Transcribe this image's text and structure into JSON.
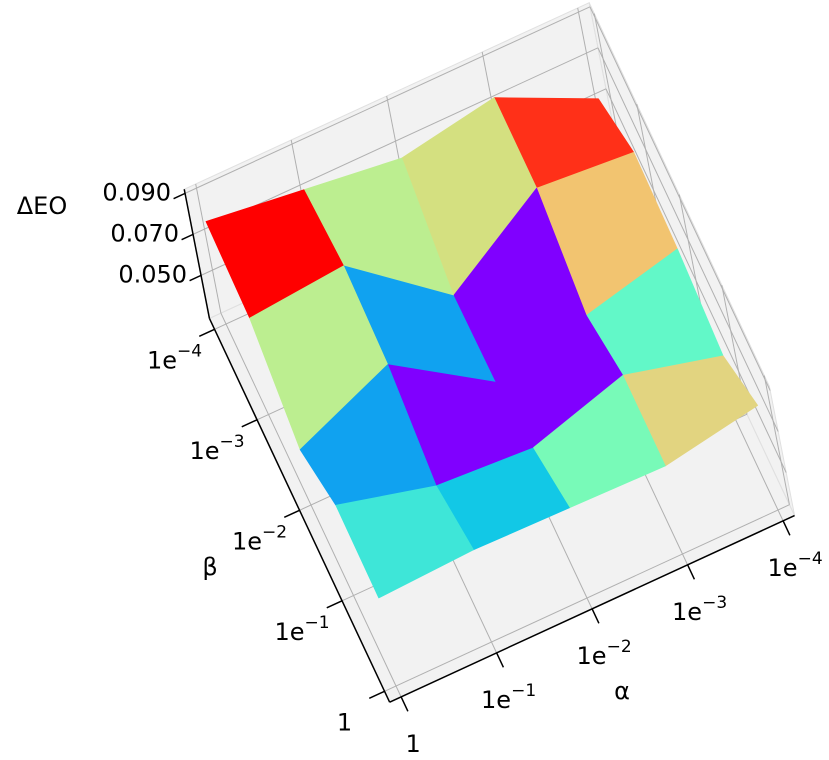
{
  "chart_data": {
    "type": "surface",
    "xlabel": "α",
    "ylabel": "β",
    "zlabel": "ΔEO",
    "x": [
      1,
      0.1,
      0.01,
      0.001,
      0.0001
    ],
    "y": [
      1,
      0.1,
      0.01,
      0.001,
      0.0001
    ],
    "z": [
      [
        0.072,
        0.074,
        0.073,
        0.072,
        0.08
      ],
      [
        0.073,
        0.061,
        0.058,
        0.072,
        0.06
      ],
      [
        0.056,
        0.076,
        0.046,
        0.057,
        0.068
      ],
      [
        0.076,
        0.08,
        0.044,
        0.075,
        0.071
      ],
      [
        0.079,
        0.073,
        0.067,
        0.075,
        0.053
      ]
    ],
    "face_colors": [
      [
        "#3ee6d8",
        "#12c8e6",
        "#78fab8",
        "#e2d480"
      ],
      [
        "#10a2f0",
        "#8000ff",
        "#8000ff",
        "#62f8c8"
      ],
      [
        "#bcee90",
        "#10a2f0",
        "#8000ff",
        "#f2c470"
      ],
      [
        "#ff0000",
        "#bcee90",
        "#d4e080",
        "#ff3018"
      ]
    ],
    "xscale": "log",
    "yscale": "log",
    "xlim": [
      1,
      0.0001
    ],
    "ylim": [
      1,
      0.0001
    ],
    "zlim": [
      0.029,
      0.092
    ],
    "xticks": [
      1,
      {
        "value": 0.1,
        "label": "1e−1"
      },
      {
        "value": 0.01,
        "label": "1e−2"
      },
      {
        "value": 0.001,
        "label": "1e−3"
      },
      {
        "value": 0.0001,
        "label": "1e−4"
      }
    ],
    "yticks": [
      1,
      {
        "value": 0.1,
        "label": "1e−1"
      },
      {
        "value": 0.01,
        "label": "1e−2"
      },
      {
        "value": 0.001,
        "label": "1e−3"
      },
      {
        "value": 0.0001,
        "label": "1e−4"
      }
    ],
    "zticks": [
      {
        "value": 0.05,
        "label": "0.050"
      },
      {
        "value": 0.07,
        "label": "0.070"
      },
      {
        "value": 0.09,
        "label": "0.090"
      }
    ],
    "grid": true
  }
}
